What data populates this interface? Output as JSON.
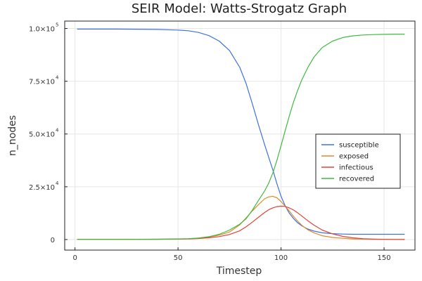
{
  "chart_data": {
    "type": "line",
    "title": "SEIR Model: Watts-Strogatz Graph",
    "xlabel": "Timestep",
    "ylabel": "n_nodes",
    "xlim": [
      -5,
      165
    ],
    "ylim": [
      -5000,
      103500
    ],
    "grid": true,
    "legend_position": "right-middle",
    "x_ticks": [
      {
        "value": 0,
        "label": "0"
      },
      {
        "value": 50,
        "label": "50"
      },
      {
        "value": 100,
        "label": "100"
      },
      {
        "value": 150,
        "label": "150"
      }
    ],
    "y_ticks": [
      {
        "value": 0,
        "label": "0",
        "exp": ""
      },
      {
        "value": 25000,
        "label": "2.5×10",
        "exp": "4"
      },
      {
        "value": 50000,
        "label": "5.0×10",
        "exp": "4"
      },
      {
        "value": 75000,
        "label": "7.5×10",
        "exp": "4"
      },
      {
        "value": 100000,
        "label": "1.0×10",
        "exp": "5"
      }
    ],
    "x": [
      1,
      10,
      20,
      30,
      40,
      50,
      55,
      60,
      65,
      70,
      75,
      80,
      83,
      86,
      89,
      92,
      94,
      96,
      98,
      100,
      102,
      104,
      106,
      108,
      110,
      113,
      116,
      120,
      125,
      130,
      135,
      140,
      145,
      150,
      155,
      160
    ],
    "series": [
      {
        "name": "susceptible",
        "color": "#3f72e0",
        "values": [
          99700,
          99700,
          99700,
          99650,
          99550,
          99250,
          98900,
          98100,
          96600,
          94000,
          89500,
          81500,
          74000,
          64500,
          54500,
          45000,
          39000,
          33000,
          26500,
          20500,
          16000,
          12500,
          10000,
          8000,
          6500,
          5000,
          4000,
          3200,
          2800,
          2600,
          2500,
          2500,
          2500,
          2500,
          2500,
          2500
        ]
      },
      {
        "name": "exposed",
        "color": "#e08a2c",
        "values": [
          100,
          100,
          100,
          120,
          150,
          250,
          400,
          700,
          1200,
          2100,
          3600,
          7000,
          10200,
          13500,
          16500,
          19300,
          20200,
          20500,
          19800,
          18000,
          15800,
          13500,
          11000,
          8800,
          6800,
          4600,
          3200,
          1800,
          1000,
          600,
          300,
          200,
          100,
          80,
          50,
          30
        ]
      },
      {
        "name": "infectious",
        "color": "#e3413a",
        "values": [
          100,
          100,
          100,
          110,
          130,
          200,
          300,
          500,
          850,
          1400,
          2400,
          4200,
          6000,
          8200,
          10500,
          12800,
          14100,
          15000,
          15600,
          15800,
          15700,
          15000,
          14000,
          12700,
          11200,
          8900,
          6800,
          4500,
          2700,
          1500,
          800,
          400,
          200,
          100,
          60,
          30
        ]
      },
      {
        "name": "recovered",
        "color": "#3fbc3f",
        "values": [
          100,
          100,
          100,
          120,
          170,
          300,
          400,
          700,
          1350,
          2500,
          4500,
          7300,
          9800,
          13800,
          18500,
          23000,
          26700,
          31500,
          37500,
          44500,
          51500,
          58500,
          65000,
          70500,
          75500,
          81500,
          86500,
          91000,
          94000,
          95700,
          96500,
          96900,
          97100,
          97200,
          97300,
          97300
        ]
      }
    ]
  }
}
